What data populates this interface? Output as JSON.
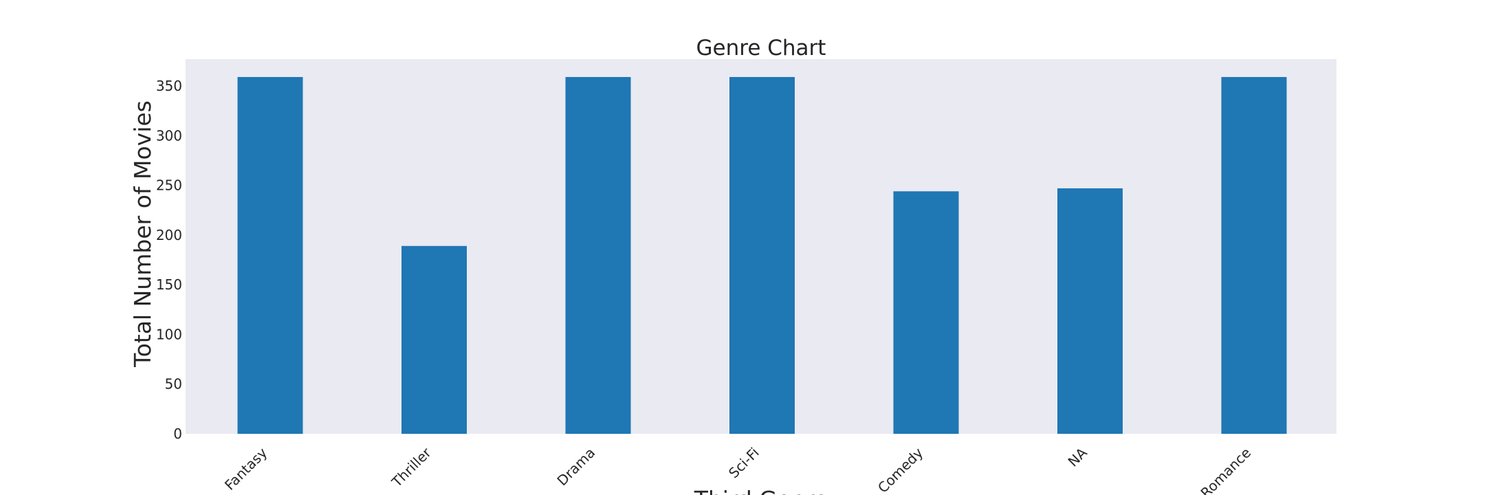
{
  "chart_data": {
    "type": "bar",
    "title": "Genre Chart",
    "xlabel": "Third Genre",
    "ylabel": "Total Number of Movies",
    "categories": [
      "Fantasy",
      "Thriller",
      "Drama",
      "Sci-Fi",
      "Comedy",
      "NA",
      "Romance"
    ],
    "values": [
      359,
      189,
      359,
      359,
      244,
      247,
      359
    ],
    "ylim": [
      0,
      377
    ],
    "yticks": [
      0,
      50,
      100,
      150,
      200,
      250,
      300,
      350
    ],
    "grid": false,
    "legend": "none",
    "colors": {
      "bar": "#1f77b4",
      "plot_background": "#eaeaf2"
    }
  }
}
